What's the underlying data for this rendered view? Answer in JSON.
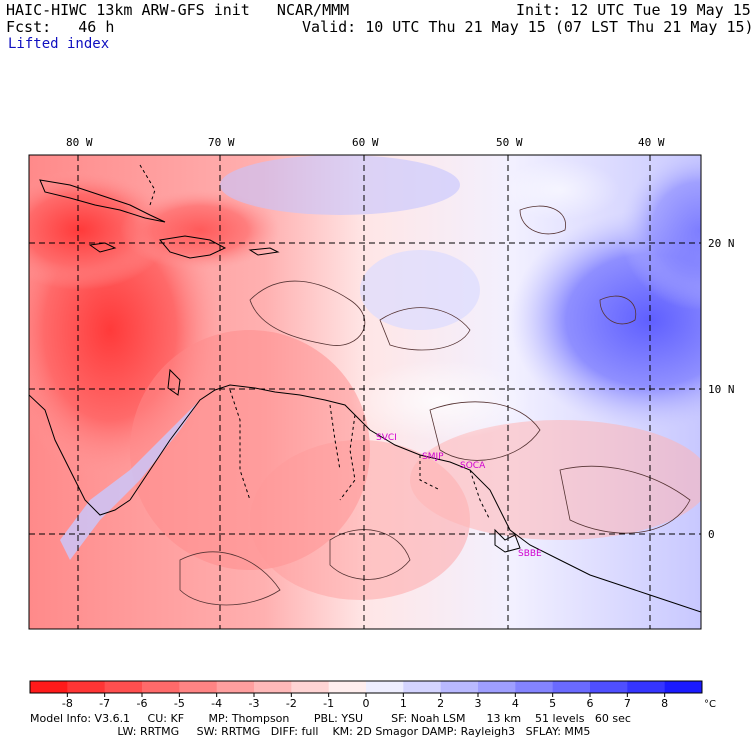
{
  "header": {
    "model_line": "HAIC-HIWC 13km ARW-GFS init   NCAR/MMM",
    "forecast_line": "Fcst:   46 h",
    "init_line": "Init: 12 UTC Tue 19 May 15",
    "valid_line": "Valid: 10 UTC Thu 21 May 15 (07 LST Thu 21 May 15)",
    "field_name": "Lifted index"
  },
  "map": {
    "lon_labels": [
      "80 W",
      "70 W",
      "60 W",
      "50 W",
      "40 W"
    ],
    "lat_labels": [
      "20 N",
      "10 N",
      "0"
    ],
    "stations": [
      "SVCI",
      "SMJP",
      "SOCA",
      "SBBE"
    ]
  },
  "colorbar": {
    "ticks": [
      "-8",
      "-7",
      "-6",
      "-5",
      "-4",
      "-3",
      "-2",
      "-1",
      "0",
      "1",
      "2",
      "3",
      "4",
      "5",
      "6",
      "7",
      "8"
    ],
    "unit": "°C",
    "colors": [
      "#ff1a1a",
      "#ff3535",
      "#ff4f4f",
      "#ff6a6a",
      "#ff8484",
      "#ff9f9f",
      "#ffb9b9",
      "#ffd4d4",
      "#ffeeee",
      "#eeeeff",
      "#d4d4ff",
      "#b9b9ff",
      "#9f9fff",
      "#8484ff",
      "#6a6aff",
      "#4f4fff",
      "#3535ff",
      "#1a1aff"
    ]
  },
  "footer": {
    "line1": "Model Info: V3.6.1     CU: KF       MP: Thompson       PBL: YSU        SF: Noah LSM      13 km    51 levels   60 sec",
    "line2": "                         LW: RRTMG     SW: RRTMG   DIFF: full    KM: 2D Smagor DAMP: Rayleigh3   SFLAY: MM5"
  }
}
